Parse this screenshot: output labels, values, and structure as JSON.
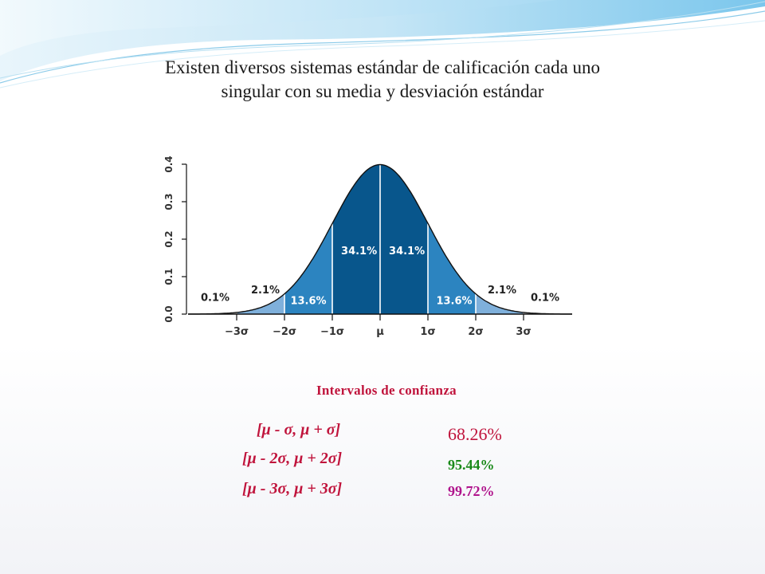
{
  "slide": {
    "title_line1": "Existen diversos sistemas estándar de calificación cada uno",
    "title_line2": "singular con su media y desviación estándar"
  },
  "colors": {
    "dark": "#08568c",
    "mid": "#2c84c0",
    "light": "#7fb0db",
    "tail": "#b8cce4",
    "accent_red": "#c0143c",
    "accent_green": "#1a8a1a",
    "accent_purple": "#b0148c"
  },
  "chart_data": {
    "type": "area",
    "title": "",
    "xlabel": "",
    "ylabel": "",
    "xlim": [
      -4,
      4
    ],
    "ylim": [
      0,
      0.4
    ],
    "yticks": [
      "0.0",
      "0.1",
      "0.2",
      "0.3",
      "0.4"
    ],
    "ytick_values": [
      0,
      0.1,
      0.2,
      0.3,
      0.4
    ],
    "xticks": [
      "−3σ",
      "−2σ",
      "−1σ",
      "μ",
      "1σ",
      "2σ",
      "3σ"
    ],
    "xtick_values": [
      -3,
      -2,
      -1,
      0,
      1,
      2,
      3
    ],
    "regions": [
      {
        "from": -4,
        "to": -3,
        "label": "0.1%",
        "value": 0.1
      },
      {
        "from": -3,
        "to": -2,
        "label": "2.1%",
        "value": 2.1
      },
      {
        "from": -2,
        "to": -1,
        "label": "13.6%",
        "value": 13.6
      },
      {
        "from": -1,
        "to": 0,
        "label": "34.1%",
        "value": 34.1
      },
      {
        "from": 0,
        "to": 1,
        "label": "34.1%",
        "value": 34.1
      },
      {
        "from": 1,
        "to": 2,
        "label": "13.6%",
        "value": 13.6
      },
      {
        "from": 2,
        "to": 3,
        "label": "2.1%",
        "value": 2.1
      },
      {
        "from": 3,
        "to": 4,
        "label": "0.1%",
        "value": 0.1
      }
    ]
  },
  "confidence": {
    "title": "Intervalos de confianza",
    "rows": [
      {
        "interval": "[μ - σ, μ + σ]",
        "percent": "68.26%"
      },
      {
        "interval": "[μ - 2σ, μ + 2σ]",
        "percent": "95.44%"
      },
      {
        "interval": "[μ - 3σ, μ + 3σ]",
        "percent": "99.72%"
      }
    ]
  }
}
